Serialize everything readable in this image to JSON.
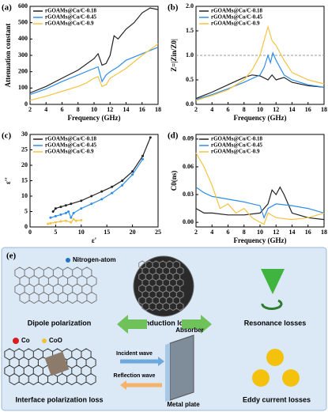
{
  "chart_data": [
    {
      "type": "line",
      "panel": "(a)",
      "xlabel": "Frequency (GHz)",
      "ylabel": "Attenuation constant",
      "xlim": [
        2,
        18
      ],
      "xticks": [
        2,
        4,
        6,
        8,
        10,
        12,
        14,
        16,
        18
      ],
      "ylim": [
        0,
        600
      ],
      "yticks": [
        0,
        100,
        200,
        300,
        400,
        500,
        600
      ],
      "legend": "upper left",
      "series": [
        {
          "name": "rGOAMs@Co/C-0.18",
          "color": "#222222",
          "x": [
            2,
            4,
            6,
            8,
            10,
            10.5,
            11,
            11.5,
            12,
            12.5,
            13,
            14,
            15,
            16,
            17,
            18
          ],
          "values": [
            70,
            110,
            160,
            210,
            280,
            310,
            240,
            250,
            300,
            420,
            400,
            460,
            500,
            560,
            590,
            580
          ]
        },
        {
          "name": "rGOAMs@Co/C-0.45",
          "color": "#2e8de6",
          "x": [
            2,
            4,
            6,
            8,
            10,
            10.5,
            11,
            11.5,
            12,
            13,
            14,
            16,
            18
          ],
          "values": [
            60,
            95,
            140,
            180,
            220,
            230,
            140,
            180,
            200,
            230,
            270,
            310,
            350
          ]
        },
        {
          "name": "rGOAMs@Co/C-0.9",
          "color": "#f3c343",
          "x": [
            2,
            4,
            6,
            8,
            9,
            10,
            10.5,
            11,
            11.5,
            12,
            14,
            16,
            18
          ],
          "values": [
            25,
            50,
            80,
            110,
            130,
            160,
            170,
            110,
            120,
            160,
            220,
            300,
            370
          ]
        }
      ]
    },
    {
      "type": "line",
      "panel": "(b)",
      "xlabel": "Frequency (GHz)",
      "ylabel": "Z=|Zin/Z0|",
      "xlim": [
        2,
        18
      ],
      "xticks": [
        2,
        4,
        6,
        8,
        10,
        12,
        14,
        16,
        18
      ],
      "ylim": [
        0,
        2
      ],
      "yticks": [
        {
          "value": 0,
          "label": "0.0"
        },
        {
          "value": 0.5,
          "label": "0.5"
        },
        {
          "value": 1,
          "label": "1.0"
        },
        {
          "value": 1.5,
          "label": "1.5"
        },
        {
          "value": 2,
          "label": "2.0"
        }
      ],
      "reference_line": 1,
      "legend": "upper left",
      "series": [
        {
          "name": "rGOAMs@Co/C-0.18",
          "color": "#222222",
          "x": [
            2,
            4,
            6,
            8,
            9,
            10,
            11,
            11.5,
            12,
            13,
            14,
            16,
            18
          ],
          "values": [
            0.12,
            0.25,
            0.4,
            0.55,
            0.6,
            0.58,
            0.5,
            0.6,
            0.5,
            0.55,
            0.45,
            0.38,
            0.35
          ]
        },
        {
          "name": "rGOAMs@Co/C-0.45",
          "color": "#2e8de6",
          "x": [
            2,
            4,
            6,
            8,
            10,
            10.5,
            11,
            11.3,
            11.6,
            12,
            13,
            14,
            16,
            18
          ],
          "values": [
            0.1,
            0.2,
            0.32,
            0.45,
            0.6,
            0.75,
            1.0,
            0.85,
            1.05,
            0.9,
            0.6,
            0.5,
            0.4,
            0.35
          ]
        },
        {
          "name": "rGOAMs@Co/C-0.9",
          "color": "#f3c343",
          "x": [
            2,
            4,
            6,
            8,
            9,
            10,
            10.5,
            11,
            11.5,
            12,
            13,
            14,
            16,
            18
          ],
          "values": [
            0.08,
            0.18,
            0.3,
            0.5,
            0.7,
            1.0,
            1.3,
            1.58,
            1.3,
            1.2,
            0.9,
            0.65,
            0.5,
            0.42
          ]
        }
      ]
    },
    {
      "type": "line",
      "panel": "(c)",
      "xlabel": "ε'",
      "ylabel": "ε''",
      "markers": true,
      "xlim": [
        0,
        25
      ],
      "xticks": [
        0,
        5,
        10,
        15,
        20,
        25
      ],
      "ylim": [
        0,
        30
      ],
      "yticks": [
        0,
        5,
        10,
        15,
        20,
        25,
        30
      ],
      "legend": "upper left",
      "series": [
        {
          "name": "rGOAMs@Co/C-0.18",
          "color": "#222222",
          "x": [
            4.5,
            5,
            6,
            7,
            8,
            10,
            12,
            14,
            16,
            18,
            20,
            22,
            23.5
          ],
          "values": [
            5,
            6,
            6.5,
            7,
            7.5,
            8.5,
            10,
            11.5,
            13,
            15,
            18,
            23,
            29
          ]
        },
        {
          "name": "rGOAMs@Co/C-0.45",
          "color": "#2e8de6",
          "x": [
            4,
            5,
            6,
            7,
            7.5,
            8,
            8.5,
            10,
            12,
            14,
            16,
            18,
            20,
            22
          ],
          "values": [
            3,
            3.5,
            4,
            4.5,
            5,
            3,
            4.5,
            6,
            7.5,
            9,
            11,
            13.5,
            17,
            22
          ]
        },
        {
          "name": "rGOAMs@Co/C-0.9",
          "color": "#f3c343",
          "x": [
            3.5,
            4,
            5,
            6,
            7,
            8,
            8.5,
            9,
            10
          ],
          "values": [
            1,
            1.2,
            1.5,
            1.8,
            2,
            1.5,
            2.5,
            2,
            2.2
          ]
        }
      ]
    },
    {
      "type": "line",
      "panel": "(d)",
      "xlabel": "Frequency (GHz)",
      "ylabel": "C0(ns)",
      "xlim": [
        2,
        18
      ],
      "xticks": [
        2,
        4,
        6,
        8,
        10,
        12,
        14,
        16,
        18
      ],
      "ylim": [
        -0.005,
        0.095
      ],
      "yticks": [
        {
          "value": 0,
          "label": "0.00"
        },
        {
          "value": 0.03,
          "label": "0.03"
        },
        {
          "value": 0.06,
          "label": "0.06"
        },
        {
          "value": 0.09,
          "label": "0.09"
        }
      ],
      "legend": "upper left",
      "series": [
        {
          "name": "rGOAMs@Co/C-0.18",
          "color": "#222222",
          "x": [
            2,
            3,
            4,
            6,
            8,
            10,
            11,
            11.5,
            12,
            12.5,
            13,
            14,
            16,
            18
          ],
          "values": [
            0.015,
            0.01,
            0.01,
            0.008,
            0.008,
            0.01,
            0.02,
            0.035,
            0.03,
            0.038,
            0.03,
            0.01,
            0.005,
            0.003
          ]
        },
        {
          "name": "rGOAMs@Co/C-0.45",
          "color": "#2e8de6",
          "x": [
            2,
            3,
            4,
            6,
            8,
            9,
            10,
            10.5,
            11,
            12,
            14,
            16,
            18
          ],
          "values": [
            0.038,
            0.032,
            0.028,
            0.025,
            0.022,
            0.02,
            0.018,
            0.005,
            0.015,
            0.02,
            0.018,
            0.015,
            0.01
          ]
        },
        {
          "name": "rGOAMs@Co/C-0.9",
          "color": "#f3c343",
          "x": [
            2,
            3,
            4,
            5,
            6,
            7,
            8,
            9,
            10,
            10.5,
            11,
            12,
            14,
            16,
            18
          ],
          "values": [
            0.075,
            0.06,
            0.04,
            0.015,
            0.02,
            0.01,
            0.015,
            0.005,
            0,
            -0.002,
            0.01,
            0.005,
            0.003,
            0.005,
            0.01
          ]
        }
      ]
    }
  ],
  "diagram": {
    "panel": "(e)",
    "nitrogen": "Nitrogen-atom",
    "dipole": "Dipole polarization",
    "conduction": "Conduction loss",
    "resonance": "Resonance losses",
    "co": "Co",
    "coo": "CoO",
    "interface": "Interface polarization loss",
    "absorber": "Absorber",
    "incident": "Incident wave",
    "reflection": "Reflection wave",
    "metal": "Metal plate",
    "eddy": "Eddy current losses"
  }
}
